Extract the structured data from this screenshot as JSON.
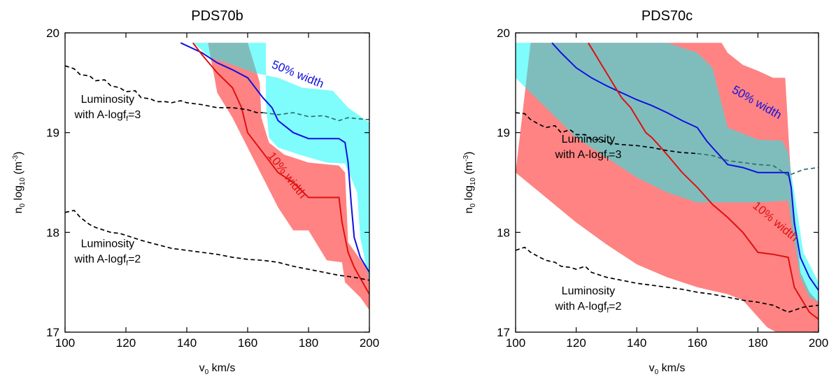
{
  "chart_data": [
    {
      "type": "area",
      "title": "PDS70b",
      "xlabel": {
        "main": "v",
        "sub": "0",
        "tail": " km/s"
      },
      "ylabel": {
        "pre": "n",
        "sub": "0",
        "mid": " log",
        "sub2": "10",
        "tail": " (m",
        "sup": "-3",
        "end": ")"
      },
      "xlim": [
        100,
        200
      ],
      "ylim": [
        17,
        20
      ],
      "xticks": [
        100,
        120,
        140,
        160,
        180,
        200
      ],
      "yticks": [
        17,
        18,
        19,
        20
      ],
      "grid": false,
      "colors": {
        "cyan_band": "#7ffcfc",
        "red_band": "#ff8383",
        "overlap": "#7fbdbd",
        "blue_line": "#1010e0",
        "red_line": "#e01010"
      },
      "bands": [
        {
          "label": "50% width",
          "color": "cyan",
          "upper": [
            [
              122.5,
              19.9
            ],
            [
              142,
              19.9
            ],
            [
              148,
              19.75
            ],
            [
              155,
              19.68
            ],
            [
              162,
              19.6
            ],
            [
              170,
              19.55
            ],
            [
              178,
              19.45
            ],
            [
              188,
              19.42
            ],
            [
              193,
              19.25
            ],
            [
              200,
              19.1
            ]
          ],
          "lower": [
            [
              166,
              19.9
            ],
            [
              166,
              19.3
            ],
            [
              167,
              18.95
            ],
            [
              170,
              18.85
            ],
            [
              178,
              18.77
            ],
            [
              186,
              18.7
            ],
            [
              192,
              18.69
            ],
            [
              196,
              18.4
            ],
            [
              197,
              17.95
            ],
            [
              200,
              17.5
            ]
          ]
        },
        {
          "label": "10% width",
          "color": "red",
          "upper": [
            [
              130,
              19.9
            ],
            [
              160,
              19.9
            ],
            [
              164,
              19.5
            ],
            [
              164.5,
              19.15
            ],
            [
              167,
              18.9
            ],
            [
              172,
              18.78
            ],
            [
              180,
              18.7
            ],
            [
              190,
              18.67
            ],
            [
              192,
              18.6
            ],
            [
              193,
              17.9
            ],
            [
              200,
              17.6
            ]
          ],
          "lower": [
            [
              147,
              19.9
            ],
            [
              150,
              19.4
            ],
            [
              155,
              19.15
            ],
            [
              160,
              18.85
            ],
            [
              165,
              18.55
            ],
            [
              170,
              18.25
            ],
            [
              175,
              18.02
            ],
            [
              180,
              18.02
            ],
            [
              186,
              17.72
            ],
            [
              191,
              17.7
            ],
            [
              192,
              17.5
            ],
            [
              197,
              17.35
            ],
            [
              200,
              17.22
            ]
          ]
        }
      ],
      "series": [
        {
          "name": "50% width",
          "color": "blue",
          "x": [
            138,
            145,
            150,
            155,
            160,
            165,
            168,
            170,
            175,
            180,
            185,
            190,
            192,
            193,
            194,
            195,
            197,
            200
          ],
          "y": [
            19.9,
            19.8,
            19.7,
            19.63,
            19.55,
            19.35,
            19.25,
            19.12,
            19.0,
            18.94,
            18.94,
            18.94,
            18.9,
            18.7,
            18.3,
            17.95,
            17.75,
            17.6
          ]
        },
        {
          "name": "10% width",
          "color": "red",
          "x": [
            142,
            145,
            150,
            155,
            158,
            160,
            165,
            170,
            175,
            180,
            185,
            190,
            191,
            193,
            195,
            200
          ],
          "y": [
            19.9,
            19.78,
            19.6,
            19.45,
            19.25,
            19.0,
            18.8,
            18.6,
            18.5,
            18.35,
            18.35,
            18.35,
            18.1,
            17.8,
            17.65,
            17.38
          ]
        },
        {
          "name": "Luminosity with A-logf=3",
          "style": "dashed",
          "color": "black",
          "x": [
            100,
            103,
            105,
            108,
            110,
            113,
            115,
            118,
            120,
            123,
            125,
            128,
            130,
            133,
            135,
            138,
            140,
            145,
            150,
            155,
            160,
            163,
            165
          ],
          "y": [
            19.67,
            19.64,
            19.58,
            19.57,
            19.52,
            19.53,
            19.47,
            19.45,
            19.41,
            19.42,
            19.35,
            19.34,
            19.31,
            19.31,
            19.3,
            19.32,
            19.3,
            19.28,
            19.25,
            19.25,
            19.23,
            19.2,
            19.2
          ]
        },
        {
          "name": "Luminosity with A-logf=3 (overlap)",
          "style": "dashed",
          "color": "teal",
          "x": [
            165,
            170,
            175,
            180,
            185,
            190,
            193,
            196,
            200
          ],
          "y": [
            19.2,
            19.18,
            19.2,
            19.16,
            19.17,
            19.12,
            19.15,
            19.14,
            19.13
          ]
        },
        {
          "name": "Luminosity with A-logf=2",
          "style": "dashed",
          "color": "black",
          "x": [
            100,
            103,
            105,
            108,
            110,
            113,
            115,
            118,
            120,
            125,
            130,
            135,
            140,
            145,
            150,
            155,
            160,
            165,
            170,
            175,
            180,
            185,
            190,
            195,
            200
          ],
          "y": [
            18.2,
            18.22,
            18.15,
            18.08,
            18.05,
            18.02,
            18.0,
            17.99,
            17.97,
            17.92,
            17.88,
            17.84,
            17.82,
            17.8,
            17.78,
            17.75,
            17.73,
            17.72,
            17.7,
            17.66,
            17.63,
            17.6,
            17.57,
            17.55,
            17.52
          ]
        }
      ],
      "annotations": [
        {
          "text": "50% width",
          "color": "blue",
          "x": 176,
          "y": 19.55,
          "rotate": 22
        },
        {
          "text": "10% width",
          "color": "red",
          "x": 172,
          "y": 18.55,
          "rotate": 52
        }
      ],
      "luminosity_labels": [
        {
          "line1": "Luminosity",
          "line2": {
            "pre": "with A-logf",
            "sub": "f",
            "post": "=3"
          },
          "x": 114,
          "y": 19.3
        },
        {
          "line1": "Luminosity",
          "line2": {
            "pre": "with A-logf",
            "sub": "f",
            "post": "=2"
          },
          "x": 114,
          "y": 17.85
        }
      ]
    },
    {
      "type": "area",
      "title": "PDS70c",
      "xlabel": {
        "main": "v",
        "sub": "0",
        "tail": " km/s"
      },
      "ylabel": {
        "pre": "n",
        "sub": "0",
        "mid": " log",
        "sub2": "10",
        "tail": " (m",
        "sup": "-3",
        "end": ")"
      },
      "xlim": [
        100,
        200
      ],
      "ylim": [
        17,
        20
      ],
      "xticks": [
        100,
        120,
        140,
        160,
        180,
        200
      ],
      "yticks": [
        17,
        18,
        19,
        20
      ],
      "grid": false,
      "colors": {
        "cyan_band": "#7ffcfc",
        "red_band": "#ff8383",
        "overlap": "#7fbdbd",
        "blue_line": "#1010e0",
        "red_line": "#e01010"
      },
      "bands": [
        {
          "label": "50% width",
          "color": "cyan",
          "upper": [
            [
              100,
              19.9
            ],
            [
              150,
              19.9
            ],
            [
              155,
              19.85
            ],
            [
              160,
              19.8
            ],
            [
              165,
              19.65
            ],
            [
              170,
              19.05
            ],
            [
              180,
              18.93
            ],
            [
              188,
              18.92
            ],
            [
              190,
              18.8
            ],
            [
              192,
              18.4
            ],
            [
              195,
              17.8
            ],
            [
              200,
              17.5
            ]
          ],
          "lower": [
            [
              100,
              19.55
            ],
            [
              105,
              19.4
            ],
            [
              110,
              19.25
            ],
            [
              115,
              19.1
            ],
            [
              120,
              18.95
            ],
            [
              130,
              18.75
            ],
            [
              140,
              18.55
            ],
            [
              150,
              18.4
            ],
            [
              160,
              18.3
            ],
            [
              180,
              18.3
            ],
            [
              190,
              18.32
            ],
            [
              191,
              18.1
            ],
            [
              194,
              17.55
            ],
            [
              197,
              17.35
            ],
            [
              200,
              17.3
            ]
          ]
        },
        {
          "label": "10% width",
          "color": "red",
          "upper": [
            [
              105,
              19.9
            ],
            [
              168,
              19.9
            ],
            [
              170,
              19.8
            ],
            [
              175,
              19.68
            ],
            [
              180,
              19.62
            ],
            [
              185,
              19.55
            ],
            [
              189,
              19.55
            ],
            [
              191,
              18.5
            ],
            [
              194,
              17.6
            ],
            [
              197,
              17.4
            ],
            [
              200,
              17.3
            ]
          ],
          "lower": [
            [
              100,
              18.6
            ],
            [
              110,
              18.35
            ],
            [
              120,
              18.1
            ],
            [
              130,
              17.88
            ],
            [
              140,
              17.68
            ],
            [
              150,
              17.55
            ],
            [
              160,
              17.45
            ],
            [
              170,
              17.38
            ],
            [
              175,
              17.32
            ],
            [
              178,
              17.22
            ],
            [
              183,
              17.05
            ],
            [
              186,
              17.0
            ],
            [
              200,
              17.0
            ]
          ]
        }
      ],
      "series": [
        {
          "name": "50% width",
          "color": "blue",
          "x": [
            112,
            115,
            120,
            125,
            130,
            135,
            140,
            145,
            150,
            155,
            160,
            163,
            165,
            168,
            170,
            175,
            180,
            185,
            190,
            191,
            192,
            194,
            197,
            200
          ],
          "y": [
            19.9,
            19.8,
            19.65,
            19.55,
            19.47,
            19.4,
            19.33,
            19.27,
            19.2,
            19.12,
            19.05,
            18.92,
            18.85,
            18.75,
            18.68,
            18.65,
            18.6,
            18.6,
            18.6,
            18.45,
            18.1,
            17.75,
            17.55,
            17.42
          ]
        },
        {
          "name": "10% width",
          "color": "red",
          "x": [
            124,
            127,
            130,
            133,
            135,
            138,
            140,
            143,
            145,
            148,
            150,
            155,
            160,
            165,
            170,
            175,
            180,
            185,
            190,
            191,
            192,
            194,
            197,
            200
          ],
          "y": [
            19.9,
            19.75,
            19.6,
            19.45,
            19.35,
            19.25,
            19.15,
            19.0,
            18.95,
            18.85,
            18.78,
            18.6,
            18.45,
            18.28,
            18.15,
            18.0,
            17.8,
            17.78,
            17.75,
            17.6,
            17.45,
            17.35,
            17.2,
            17.13
          ]
        },
        {
          "name": "Luminosity with A-logf=3",
          "style": "dashed",
          "color": "black",
          "x": [
            100,
            103,
            105,
            108,
            110,
            113,
            115,
            118,
            120,
            123,
            125,
            128,
            130,
            135,
            140,
            145,
            150,
            155,
            160
          ],
          "y": [
            19.2,
            19.19,
            19.13,
            19.08,
            19.05,
            19.07,
            19.0,
            19.03,
            18.98,
            18.98,
            18.93,
            18.93,
            18.9,
            18.88,
            18.87,
            18.85,
            18.82,
            18.8,
            18.79
          ]
        },
        {
          "name": "Luminosity with A-logf=3 (overlap)",
          "style": "dashed",
          "color": "teal",
          "x": [
            160,
            165,
            170,
            175,
            180,
            185,
            190,
            195,
            200
          ],
          "y": [
            18.79,
            18.77,
            18.72,
            18.7,
            18.68,
            18.67,
            18.57,
            18.63,
            18.65
          ]
        },
        {
          "name": "Luminosity with A-logf=2",
          "style": "dashed",
          "color": "black",
          "x": [
            100,
            103,
            105,
            108,
            110,
            113,
            115,
            118,
            120,
            123,
            125,
            130,
            135,
            140,
            145,
            150,
            155,
            160,
            165,
            170,
            175,
            180,
            185,
            190,
            195,
            200
          ],
          "y": [
            17.82,
            17.85,
            17.8,
            17.75,
            17.72,
            17.7,
            17.66,
            17.65,
            17.63,
            17.66,
            17.6,
            17.55,
            17.52,
            17.49,
            17.47,
            17.45,
            17.43,
            17.4,
            17.38,
            17.35,
            17.32,
            17.3,
            17.27,
            17.2,
            17.25,
            17.27
          ]
        }
      ],
      "annotations": [
        {
          "text": "50% width",
          "color": "blue",
          "x": 179,
          "y": 19.27,
          "rotate": 30
        },
        {
          "text": "10% width",
          "color": "red",
          "x": 185,
          "y": 18.08,
          "rotate": 40
        }
      ],
      "luminosity_labels": [
        {
          "line1": "Luminosity",
          "line2": {
            "pre": "with A-logf",
            "sub": "f",
            "post": "=3"
          },
          "x": 124,
          "y": 18.9
        },
        {
          "line1": "Luminosity",
          "line2": {
            "pre": "with A-logf",
            "sub": "f",
            "post": "=2"
          },
          "x": 124,
          "y": 17.38
        }
      ]
    }
  ]
}
